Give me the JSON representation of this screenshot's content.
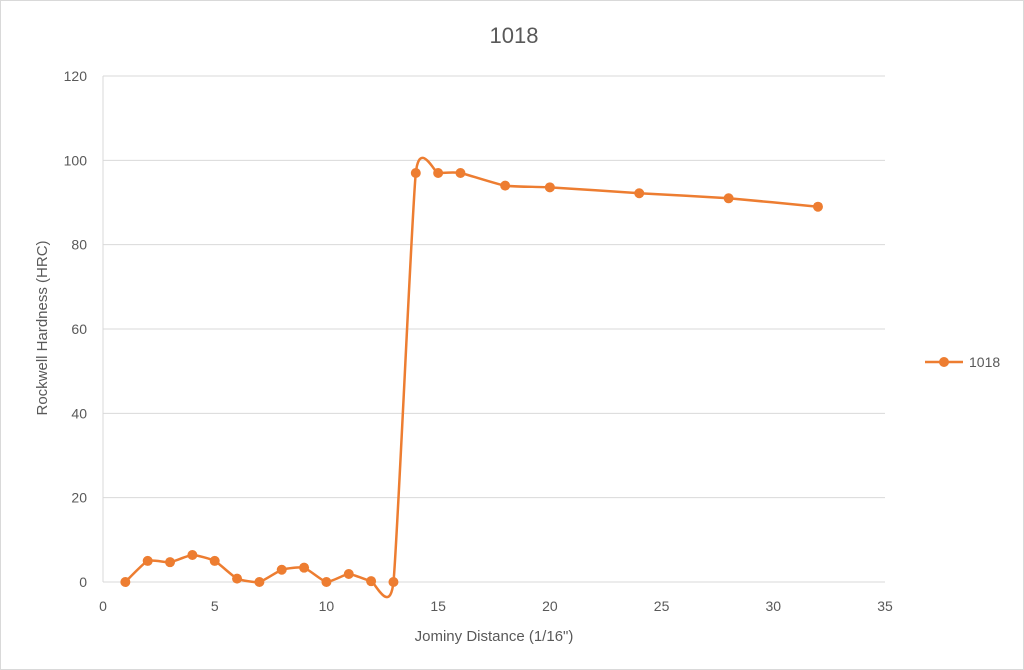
{
  "chart_data": {
    "type": "scatter",
    "title": "1018",
    "xlabel": "Jominy Distance (1/16\")",
    "ylabel": "Rockwell Hardness (HRC)",
    "xlim": [
      0,
      35
    ],
    "ylim": [
      0,
      120
    ],
    "xticks": [
      0,
      5,
      10,
      15,
      20,
      25,
      30,
      35
    ],
    "yticks": [
      0,
      20,
      40,
      60,
      80,
      100,
      120
    ],
    "grid": "horizontal",
    "legend_position": "right",
    "smooth_lines": true,
    "series": [
      {
        "name": "1018",
        "color": "#ED7D31",
        "x": [
          1,
          2,
          3,
          4,
          5,
          6,
          7,
          8,
          9,
          10,
          11,
          12,
          13,
          14,
          15,
          16,
          18,
          20,
          24,
          28,
          32
        ],
        "y": [
          0,
          5,
          4.7,
          6.4,
          5,
          0.8,
          0,
          2.9,
          3.4,
          0,
          1.9,
          0.2,
          0,
          97,
          97,
          97,
          94,
          93.6,
          92.2,
          91,
          89
        ]
      }
    ]
  }
}
